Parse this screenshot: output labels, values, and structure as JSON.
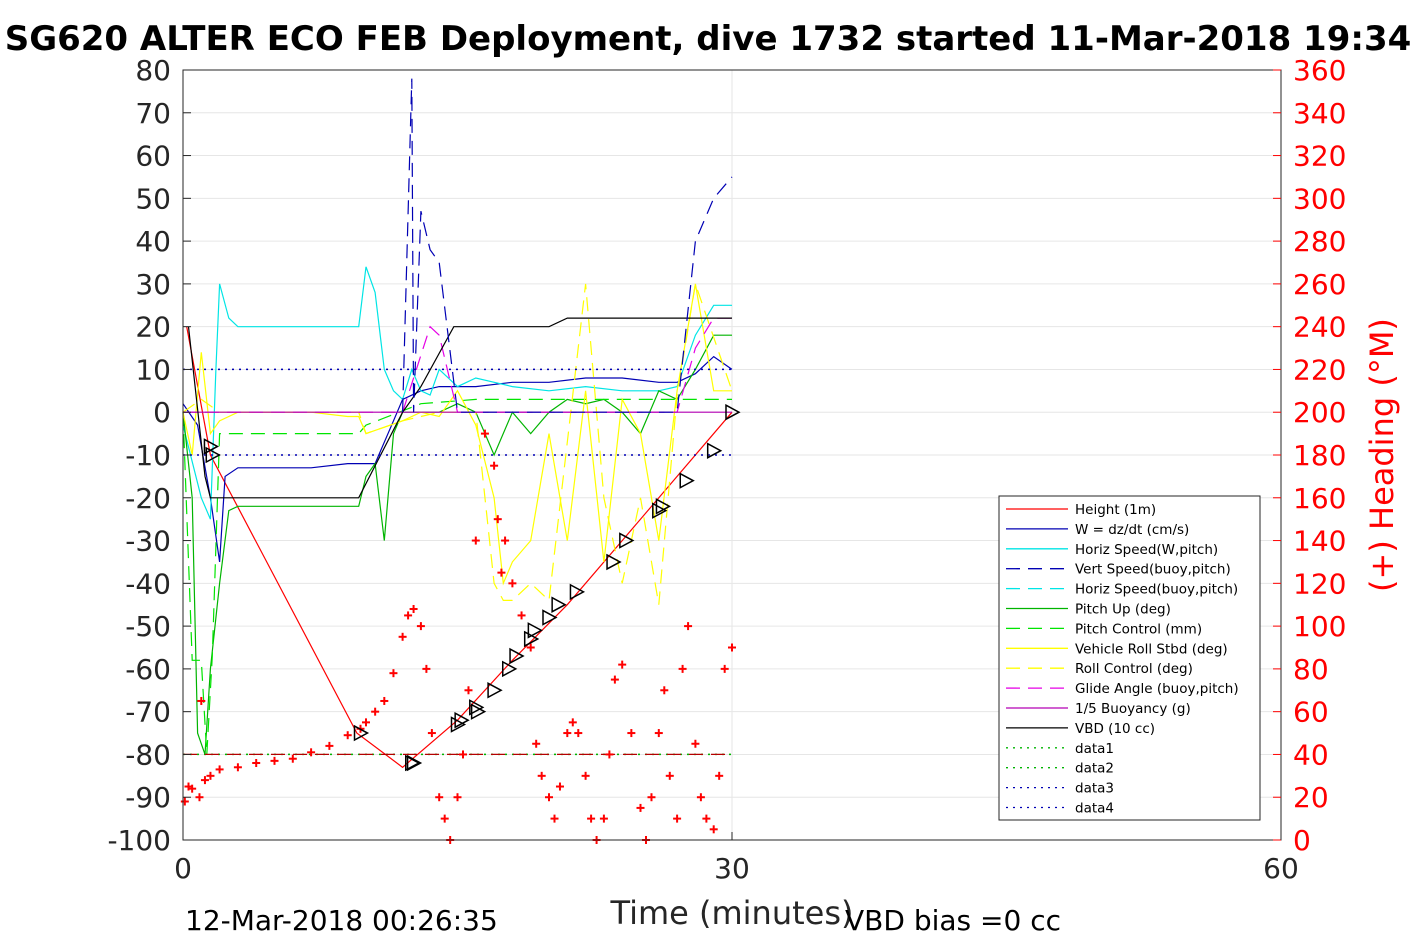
{
  "chart_data": {
    "type": "line",
    "title": "SG620 ALTER ECO FEB Deployment, dive 1732 started 11-Mar-2018 19:34",
    "xlabel": "Time (minutes)",
    "ylabel_right": "(+) Heading (°M)",
    "xlim": [
      0,
      60
    ],
    "ylim_left": [
      -100,
      80
    ],
    "ylim_right": [
      0,
      360
    ],
    "xticks": [
      "0",
      "30",
      "60"
    ],
    "yticks_left": [
      "80",
      "70",
      "60",
      "50",
      "40",
      "30",
      "20",
      "10",
      "0",
      "-10",
      "-20",
      "-30",
      "-40",
      "-50",
      "-60",
      "-70",
      "-80",
      "-90",
      "-100"
    ],
    "yticks_right": [
      "360",
      "340",
      "320",
      "300",
      "280",
      "260",
      "240",
      "220",
      "200",
      "180",
      "160",
      "140",
      "120",
      "100",
      "80",
      "60",
      "40",
      "20",
      "0"
    ],
    "grid": true,
    "legend_position": "lower-right",
    "footer_left": "12-Mar-2018 00:26:35",
    "footer_right": "VBD bias =0 cc",
    "legend": [
      {
        "label": "Height (1m)",
        "color": "#ff0000",
        "dash": "solid"
      },
      {
        "label": "W = dz/dt (cm/s)",
        "color": "#0000b4",
        "dash": "solid"
      },
      {
        "label": "Horiz Speed(W,pitch)",
        "color": "#00e5e5",
        "dash": "solid"
      },
      {
        "label": "Vert Speed(buoy,pitch)",
        "color": "#0000b4",
        "dash": "long"
      },
      {
        "label": "Horiz Speed(buoy,pitch)",
        "color": "#00e5e5",
        "dash": "long"
      },
      {
        "label": "Pitch Up (deg)",
        "color": "#00b400",
        "dash": "solid"
      },
      {
        "label": "Pitch Control (mm)",
        "color": "#00e500",
        "dash": "long"
      },
      {
        "label": "Vehicle Roll Stbd (deg)",
        "color": "#ffff00",
        "dash": "solid"
      },
      {
        "label": "Roll Control (deg)",
        "color": "#ffff00",
        "dash": "long"
      },
      {
        "label": "Glide Angle (buoy,pitch)",
        "color": "#e500e5",
        "dash": "long"
      },
      {
        "label": "1/5 Buoyancy (g)",
        "color": "#b400b4",
        "dash": "solid"
      },
      {
        "label": "VBD (10 cc)",
        "color": "#000000",
        "dash": "solid"
      },
      {
        "label": "data1",
        "color": "#00b400",
        "dash": "dot"
      },
      {
        "label": "data2",
        "color": "#00b400",
        "dash": "dot"
      },
      {
        "label": "data3",
        "color": "#0000b4",
        "dash": "dot"
      },
      {
        "label": "data4",
        "color": "#0000b4",
        "dash": "dot"
      }
    ],
    "series": [
      {
        "name": "Height (1m)",
        "color": "#ff0000",
        "dash": "solid",
        "x": [
          0.2,
          1.5,
          9.5,
          12.0,
          15.0,
          18.0,
          21.0,
          24.0,
          27.0,
          30.0
        ],
        "y": [
          20,
          -10,
          -75,
          -83,
          -72,
          -58,
          -45,
          -30,
          -15,
          0
        ]
      },
      {
        "name": "W = dz/dt (cm/s)",
        "color": "#0000b4",
        "dash": "solid",
        "x": [
          0,
          0.8,
          1.5,
          2.0,
          2.3,
          3,
          5,
          7,
          9,
          9.6,
          10.5,
          11.5,
          12,
          13,
          14,
          16,
          18,
          19,
          20,
          22,
          24,
          26,
          27,
          28,
          29,
          30
        ],
        "y": [
          2,
          -3,
          -20,
          -35,
          -15,
          -13,
          -13,
          -13,
          -12,
          -12,
          -12,
          -2,
          3,
          5,
          6,
          6,
          7,
          7,
          7,
          8,
          8,
          7,
          7,
          9,
          13,
          10
        ]
      },
      {
        "name": "Horiz Speed(W,pitch)",
        "color": "#00e5e5",
        "dash": "solid",
        "x": [
          0,
          1,
          1.5,
          1.8,
          2.0,
          2.5,
          3,
          5,
          7,
          9,
          9.6,
          10,
          10.5,
          11,
          11.5,
          12,
          12.5,
          13,
          13.5,
          14,
          15,
          16,
          18,
          20,
          22,
          24,
          26,
          27,
          28,
          29,
          30
        ],
        "y": [
          -3,
          -20,
          -25,
          10,
          30,
          22,
          20,
          20,
          20,
          20,
          20,
          34,
          28,
          10,
          5,
          3,
          10,
          5,
          4,
          10,
          6,
          8,
          6,
          5,
          6,
          5,
          5,
          6,
          18,
          25,
          25
        ]
      },
      {
        "name": "Pitch Up (deg)",
        "color": "#00b400",
        "dash": "solid",
        "x": [
          0,
          0.5,
          0.8,
          1.2,
          1.5,
          2.0,
          2.5,
          3,
          5,
          7,
          9,
          9.6,
          10,
          10.5,
          11,
          11.5,
          12,
          13,
          14,
          15,
          16,
          17,
          18,
          19,
          20,
          21,
          22,
          23,
          24,
          25,
          26,
          27,
          28,
          29,
          30
        ],
        "y": [
          0,
          -20,
          -75,
          -80,
          -60,
          -40,
          -23,
          -22,
          -22,
          -22,
          -22,
          -22,
          -15,
          -12,
          -30,
          -5,
          0,
          0,
          0,
          2,
          0,
          -10,
          0,
          -5,
          0,
          3,
          2,
          3,
          0,
          -5,
          5,
          3,
          10,
          18,
          18
        ]
      },
      {
        "name": "Pitch Control (mm)",
        "color": "#00e500",
        "dash": "long",
        "x": [
          0,
          0.5,
          1,
          1.3,
          1.6,
          2,
          3,
          9.6,
          10,
          13,
          16,
          20,
          24,
          28,
          30
        ],
        "y": [
          0,
          -58,
          -58,
          -80,
          -57,
          -5,
          -5,
          -5,
          -3,
          2,
          3,
          3,
          3,
          3,
          3
        ]
      },
      {
        "name": "Vehicle Roll Stbd (deg)",
        "color": "#ffff00",
        "dash": "solid",
        "x": [
          0,
          0.5,
          1,
          1.5,
          2,
          3,
          5,
          7,
          9,
          9.6,
          10,
          12,
          13,
          14,
          15,
          16,
          17,
          17.5,
          18,
          19,
          20,
          21,
          22,
          23,
          24,
          25,
          26,
          27,
          28,
          29,
          30
        ],
        "y": [
          0,
          -10,
          14,
          -5,
          -2,
          0,
          0,
          0,
          -1,
          -1,
          -5,
          -2,
          0,
          -1,
          5,
          -3,
          -20,
          -40,
          -35,
          -30,
          -5,
          -30,
          5,
          -35,
          3,
          -5,
          -30,
          5,
          30,
          5,
          5
        ]
      },
      {
        "name": "Roll Control (deg)",
        "color": "#ffff00",
        "dash": "long",
        "x": [
          0,
          1,
          2,
          9.6,
          10,
          12,
          14,
          16,
          17,
          17.5,
          18,
          19,
          20,
          22,
          23,
          24,
          25,
          26,
          27,
          28,
          30
        ],
        "y": [
          0,
          3,
          0,
          0,
          -5,
          -2,
          0,
          0,
          -40,
          -44,
          -44,
          -40,
          -44,
          30,
          -20,
          -40,
          -20,
          -45,
          4,
          30,
          5
        ]
      },
      {
        "name": "Glide Angle (buoy,pitch)",
        "color": "#e500e5",
        "dash": "long",
        "x": [
          0,
          1,
          2,
          5,
          9,
          12,
          13.5,
          14,
          15,
          16,
          20,
          24,
          27,
          28,
          29,
          30
        ],
        "y": [
          0,
          0,
          0,
          0,
          0,
          0,
          20,
          18,
          0,
          0,
          0,
          0,
          0,
          15,
          22,
          22
        ]
      },
      {
        "name": "1/5 Buoyancy (g)",
        "color": "#b400b4",
        "dash": "solid",
        "x": [
          0,
          1,
          5,
          9.6,
          12,
          14,
          16,
          20,
          24,
          27,
          28,
          29,
          30
        ],
        "y": [
          0,
          0,
          0,
          0,
          0,
          0,
          0,
          0,
          0,
          0,
          0,
          0,
          0
        ]
      },
      {
        "name": "VBD (10 cc)",
        "color": "#000000",
        "dash": "solid",
        "x": [
          0.3,
          1.2,
          1.5,
          2.0,
          5,
          9.6,
          12,
          13,
          14.8,
          16,
          20,
          21,
          24,
          30
        ],
        "y": [
          20,
          -15,
          -20,
          -20,
          -20,
          -20,
          0,
          6,
          20,
          20,
          20,
          22,
          22,
          22
        ]
      },
      {
        "name": "Vert Speed(buoy,pitch)",
        "color": "#0000b4",
        "dash": "long",
        "x": [
          12,
          12.5,
          12.6,
          13,
          13.5,
          14,
          15,
          18,
          21,
          24,
          27,
          28,
          29,
          30
        ],
        "y": [
          0,
          78,
          0,
          47,
          38,
          35,
          0,
          0,
          0,
          0,
          0,
          40,
          50,
          55
        ]
      },
      {
        "name": "data1",
        "color": "#00b400",
        "dash": "dot",
        "x": [
          0,
          30
        ],
        "y": [
          -80,
          -80
        ]
      },
      {
        "name": "data2",
        "color": "#b40000",
        "dash": "long",
        "x": [
          0,
          30
        ],
        "y": [
          -80,
          -80
        ]
      },
      {
        "name": "data3",
        "color": "#0000b4",
        "dash": "dot",
        "x": [
          0,
          30
        ],
        "y": [
          10,
          10
        ]
      },
      {
        "name": "data4",
        "color": "#0000b4",
        "dash": "dot",
        "x": [
          0,
          30
        ],
        "y": [
          -10,
          -10
        ]
      }
    ],
    "triangle_markers": {
      "x": [
        1.5,
        1.6,
        9.7,
        12.5,
        12.6,
        15,
        15.2,
        16,
        16.1,
        17,
        17.8,
        18.2,
        19.0,
        19.2,
        20.0,
        20.5,
        21.5,
        23.5,
        24.2,
        26.0,
        26.2,
        27.5,
        29.0,
        30.0
      ],
      "y": [
        -8,
        -10,
        -75,
        -82,
        -82,
        -73,
        -72,
        -69,
        -70,
        -65,
        -60,
        -57,
        -53,
        -51,
        -48,
        -45,
        -42,
        -35,
        -30,
        -23,
        -22,
        -16,
        -9,
        0
      ]
    },
    "heading_markers": {
      "x": [
        0.1,
        0.3,
        0.5,
        0.9,
        1.0,
        1.2,
        1.5,
        2,
        3,
        4,
        5,
        6,
        7,
        8,
        9,
        9.7,
        10,
        10.5,
        11,
        11.5,
        12,
        12.3,
        12.6,
        13,
        13.3,
        13.6,
        14,
        14.3,
        14.6,
        15,
        15.3,
        15.6,
        16,
        16.5,
        17,
        17.2,
        17.4,
        17.6,
        18,
        18.5,
        19,
        19.3,
        19.6,
        20,
        20.3,
        20.6,
        21,
        21.3,
        21.6,
        22,
        22.3,
        22.6,
        23,
        23.3,
        23.6,
        24,
        24.5,
        25,
        25.3,
        25.6,
        26,
        26.3,
        26.6,
        27,
        27.3,
        27.6,
        28,
        28.3,
        28.6,
        29,
        29.3,
        29.6,
        30
      ],
      "y": [
        18,
        25,
        24,
        20,
        65,
        28,
        30,
        33,
        34,
        36,
        37,
        38,
        41,
        44,
        49,
        52,
        55,
        60,
        65,
        78,
        95,
        105,
        108,
        100,
        80,
        50,
        20,
        10,
        0,
        20,
        40,
        70,
        140,
        190,
        175,
        150,
        125,
        140,
        120,
        105,
        90,
        45,
        30,
        20,
        10,
        25,
        50,
        55,
        50,
        30,
        10,
        0,
        10,
        40,
        75,
        82,
        50,
        15,
        0,
        20,
        50,
        70,
        30,
        10,
        80,
        100,
        45,
        20,
        10,
        5,
        30,
        80,
        90
      ]
    }
  }
}
